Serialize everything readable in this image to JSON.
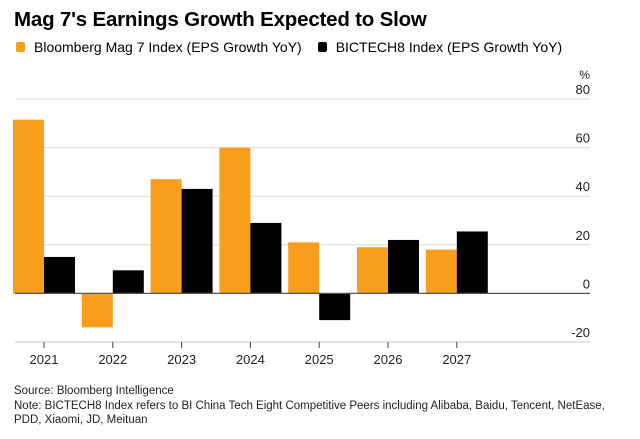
{
  "chart_data": {
    "type": "bar",
    "title": "Mag 7's Earnings Growth Expected to Slow",
    "categories": [
      "2021",
      "2022",
      "2023",
      "2024",
      "2025",
      "2026",
      "2027"
    ],
    "series": [
      {
        "name": "Bloomberg Mag 7 Index (EPS Growth YoY)",
        "color": "#f99d1c",
        "values": [
          71.5,
          -14,
          47,
          60,
          21,
          19,
          18
        ]
      },
      {
        "name": "BICTECH8 Index (EPS Growth YoY)",
        "color": "#000000",
        "values": [
          15,
          9.5,
          43,
          29,
          -11,
          22,
          25.5
        ]
      }
    ],
    "xlabel": "",
    "ylabel": "%",
    "ylim": [
      -20,
      80
    ],
    "yticks": [
      80,
      60,
      40,
      20,
      0,
      -20
    ],
    "ytick_labels": [
      "80",
      "60",
      "40",
      "20",
      "0",
      "-20"
    ],
    "grid": true,
    "y_axis_position": "right",
    "legend_position": "top-left",
    "source": "Source: Bloomberg Intelligence",
    "note": "Note: BICTECH8 Index refers to BI China Tech Eight Competitive Peers including Alibaba, Baidu, Tencent, NetEase, PDD, Xiaomi, JD, Meituan"
  }
}
